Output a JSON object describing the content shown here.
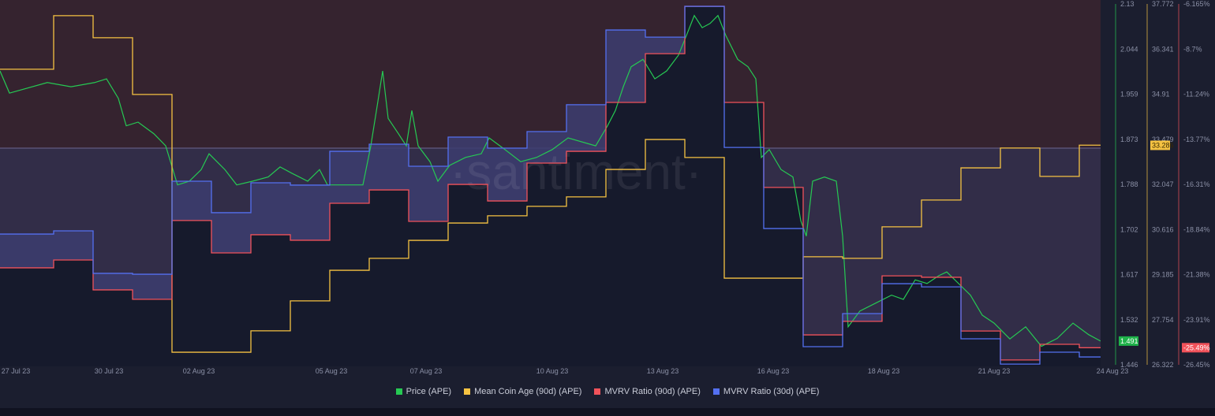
{
  "colors": {
    "price": "#26c953",
    "coin_age": "#f5c242",
    "mvrv90": "#f0525a",
    "mvrv30": "#5470f0"
  },
  "watermark": "·santiment·",
  "chart_data": {
    "type": "line",
    "x_unit": "days since 27 Jul 23",
    "xlim": [
      -0.36,
      27.54
    ],
    "x_ticks": [
      {
        "label": "27 Jul 23",
        "day": 0.04
      },
      {
        "label": "30 Jul 23",
        "day": 2.4
      },
      {
        "label": "02 Aug 23",
        "day": 4.68
      },
      {
        "label": "05 Aug 23",
        "day": 8.04
      },
      {
        "label": "07 Aug 23",
        "day": 10.44
      },
      {
        "label": "10 Aug 23",
        "day": 13.64
      },
      {
        "label": "13 Aug 23",
        "day": 16.44
      },
      {
        "label": "16 Aug 23",
        "day": 19.24
      },
      {
        "label": "18 Aug 23",
        "day": 22.04
      },
      {
        "label": "21 Aug 23",
        "day": 24.84
      },
      {
        "label": "24 Aug 23",
        "day": 27.84
      }
    ],
    "axes": [
      {
        "name": "Price (APE)",
        "ylim": [
          1.446,
          2.13
        ],
        "ticks": [
          "2.13",
          "2.044",
          "1.959",
          "1.873",
          "1.788",
          "1.702",
          "1.617",
          "1.532",
          "1.446"
        ],
        "current": "1.491"
      },
      {
        "name": "Mean Coin Age (90d) (APE)",
        "ylim": [
          26.322,
          37.772
        ],
        "ticks": [
          "37.772",
          "36.341",
          "34.91",
          "33.479",
          "32.047",
          "30.616",
          "29.185",
          "27.754",
          "26.322"
        ],
        "current": "33.286"
      },
      {
        "name": "MVRV Ratio (%)",
        "ylim": [
          -26.45,
          -6.165
        ],
        "ticks": [
          "-6.165%",
          "-8.7%",
          "-11.24%",
          "-13.77%",
          "-16.31%",
          "-18.84%",
          "-21.38%",
          "-23.91%",
          "-26.45%"
        ],
        "current": "-25.49%"
      }
    ],
    "step_breaks": [
      -0.36,
      1,
      2,
      3,
      4,
      5,
      6,
      7,
      8,
      9,
      10,
      11,
      12,
      13,
      14,
      15,
      16,
      17,
      18,
      19,
      20,
      21,
      22,
      23,
      24,
      25,
      26,
      27,
      27.54
    ],
    "series": [
      {
        "name": "Price (APE)",
        "axis": 0,
        "kind": "line",
        "points": [
          [
            -0.36,
            2.003
          ],
          [
            -0.12,
            1.961
          ],
          [
            0.84,
            1.981
          ],
          [
            1.44,
            1.973
          ],
          [
            2.04,
            1.981
          ],
          [
            2.34,
            1.988
          ],
          [
            2.64,
            1.951
          ],
          [
            2.84,
            1.899
          ],
          [
            3.14,
            1.906
          ],
          [
            3.54,
            1.884
          ],
          [
            3.84,
            1.861
          ],
          [
            4.14,
            1.787
          ],
          [
            4.44,
            1.794
          ],
          [
            4.74,
            1.816
          ],
          [
            4.94,
            1.846
          ],
          [
            5.34,
            1.816
          ],
          [
            5.64,
            1.787
          ],
          [
            6.04,
            1.794
          ],
          [
            6.44,
            1.802
          ],
          [
            6.74,
            1.821
          ],
          [
            7.04,
            1.809
          ],
          [
            7.44,
            1.794
          ],
          [
            7.74,
            1.816
          ],
          [
            7.94,
            1.787
          ],
          [
            8.84,
            1.787
          ],
          [
            9.04,
            1.861
          ],
          [
            9.2,
            1.936
          ],
          [
            9.34,
            2.003
          ],
          [
            9.48,
            1.913
          ],
          [
            9.74,
            1.884
          ],
          [
            9.94,
            1.861
          ],
          [
            10.08,
            1.928
          ],
          [
            10.24,
            1.861
          ],
          [
            10.54,
            1.831
          ],
          [
            10.74,
            1.794
          ],
          [
            11.04,
            1.824
          ],
          [
            11.44,
            1.839
          ],
          [
            11.84,
            1.846
          ],
          [
            12.04,
            1.876
          ],
          [
            12.44,
            1.854
          ],
          [
            12.84,
            1.831
          ],
          [
            13.24,
            1.839
          ],
          [
            13.64,
            1.854
          ],
          [
            14.04,
            1.876
          ],
          [
            14.74,
            1.861
          ],
          [
            15.04,
            1.899
          ],
          [
            15.24,
            1.928
          ],
          [
            15.44,
            1.973
          ],
          [
            15.64,
            2.011
          ],
          [
            15.94,
            2.025
          ],
          [
            16.24,
            1.988
          ],
          [
            16.54,
            2.003
          ],
          [
            16.84,
            2.033
          ],
          [
            17.04,
            2.07
          ],
          [
            17.24,
            2.108
          ],
          [
            17.44,
            2.085
          ],
          [
            17.64,
            2.093
          ],
          [
            17.84,
            2.108
          ],
          [
            18.04,
            2.07
          ],
          [
            18.34,
            2.025
          ],
          [
            18.6,
            2.011
          ],
          [
            18.8,
            1.988
          ],
          [
            18.94,
            1.839
          ],
          [
            19.14,
            1.854
          ],
          [
            19.44,
            1.816
          ],
          [
            19.74,
            1.802
          ],
          [
            19.94,
            1.719
          ],
          [
            20.08,
            1.69
          ],
          [
            20.24,
            1.794
          ],
          [
            20.54,
            1.802
          ],
          [
            20.84,
            1.794
          ],
          [
            21.0,
            1.69
          ],
          [
            21.14,
            1.518
          ],
          [
            21.44,
            1.548
          ],
          [
            21.84,
            1.563
          ],
          [
            22.24,
            1.578
          ],
          [
            22.54,
            1.57
          ],
          [
            22.84,
            1.607
          ],
          [
            23.14,
            1.6
          ],
          [
            23.44,
            1.615
          ],
          [
            23.64,
            1.622
          ],
          [
            23.94,
            1.6
          ],
          [
            24.24,
            1.578
          ],
          [
            24.54,
            1.54
          ],
          [
            24.84,
            1.525
          ],
          [
            25.24,
            1.495
          ],
          [
            25.64,
            1.518
          ],
          [
            26.04,
            1.481
          ],
          [
            26.44,
            1.496
          ],
          [
            26.84,
            1.525
          ],
          [
            27.24,
            1.503
          ],
          [
            27.54,
            1.491
          ]
        ]
      },
      {
        "name": "Mean Coin Age (90d) (APE)",
        "axis": 1,
        "kind": "step",
        "values": [
          35.7,
          37.4,
          36.7,
          34.9,
          26.72,
          26.72,
          27.4,
          28.35,
          29.32,
          29.7,
          30.27,
          30.82,
          31.05,
          31.35,
          31.65,
          32.52,
          33.47,
          32.9,
          29.07,
          29.07,
          29.75,
          29.7,
          30.7,
          31.55,
          32.57,
          33.2,
          32.3,
          33.29
        ]
      },
      {
        "name": "MVRV Ratio (90d) (APE)",
        "axis": 2,
        "kind": "step",
        "values": [
          -21.0,
          -20.56,
          -22.24,
          -22.77,
          -18.34,
          -20.16,
          -19.14,
          -19.45,
          -17.37,
          -16.62,
          -18.39,
          -16.31,
          -17.24,
          -15.11,
          -14.45,
          -11.7,
          -8.96,
          -6.3,
          -11.7,
          -16.48,
          -24.77,
          -24.01,
          -21.45,
          -21.53,
          -24.55,
          -26.18,
          -25.3,
          -25.49
        ]
      },
      {
        "name": "MVRV Ratio (30d) (APE)",
        "axis": 2,
        "kind": "step",
        "values": [
          -19.1,
          -18.92,
          -21.31,
          -21.36,
          -16.13,
          -17.9,
          -16.22,
          -16.35,
          -14.45,
          -14.05,
          -15.29,
          -13.65,
          -14.27,
          -13.34,
          -11.83,
          -7.63,
          -8.03,
          -6.3,
          -14.23,
          -18.79,
          -25.43,
          -23.57,
          -21.89,
          -22.07,
          -24.99,
          -26.41,
          -25.74,
          -26.01
        ]
      }
    ],
    "legend": [
      "Price (APE)",
      "Mean Coin Age (90d) (APE)",
      "MVRV Ratio (90d) (APE)",
      "MVRV Ratio (30d) (APE)"
    ],
    "legend_position": "bottom-center",
    "grid": false
  }
}
